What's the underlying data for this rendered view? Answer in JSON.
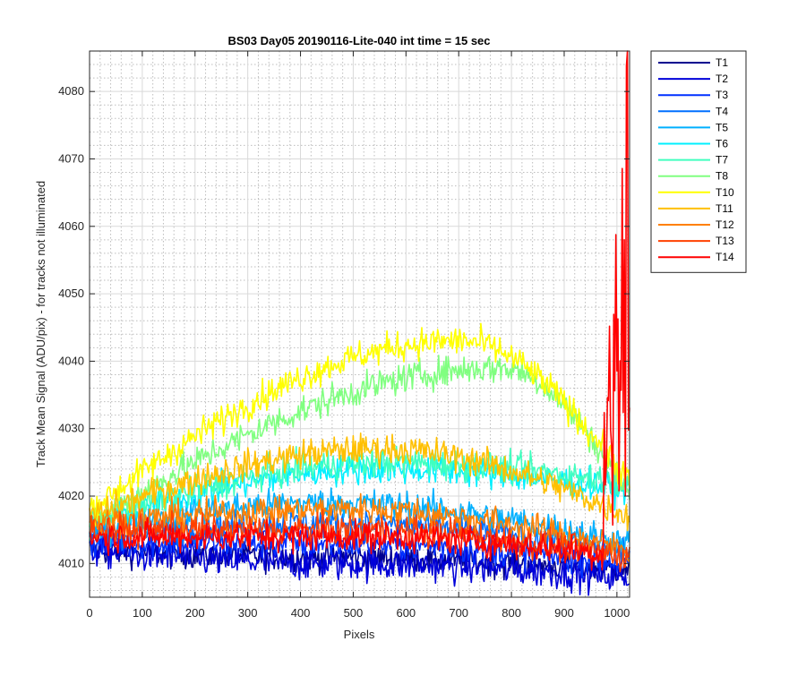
{
  "chart_data": {
    "type": "line",
    "title": "BS03 Day05 20190116-Lite-040 int time = 15 sec",
    "xlabel": "Pixels",
    "ylabel": "Track Mean Signal (ADU/pix) - for tracks not illuminated",
    "xlim": [
      0,
      1024
    ],
    "ylim": [
      4005,
      4086
    ],
    "xticks": [
      "0",
      "100",
      "200",
      "300",
      "400",
      "500",
      "600",
      "700",
      "800",
      "900",
      "1000"
    ],
    "yticks": [
      "4010",
      "4020",
      "4030",
      "4040",
      "4050",
      "4060",
      "4070",
      "4080"
    ],
    "grid": true,
    "minor_grid": true,
    "legend_position": "outside-top-right",
    "series_shape": "rises from the start level to a broad maximum near the peak pixel, then falls to the end level, with pixel-to-pixel noise of the given amplitude; T14 spikes sharply past pixel 980",
    "series": [
      {
        "name": "T1",
        "color": "#00008F",
        "start": 4012,
        "peak": 4011,
        "peak_x": 400,
        "end": 4009,
        "noise": 1.5
      },
      {
        "name": "T2",
        "color": "#0000D9",
        "start": 4012,
        "peak": 4010,
        "peak_x": 450,
        "end": 4008,
        "noise": 1.8
      },
      {
        "name": "T3",
        "color": "#0030FF",
        "start": 4013,
        "peak": 4013,
        "peak_x": 450,
        "end": 4010,
        "noise": 1.6
      },
      {
        "name": "T4",
        "color": "#0070FF",
        "start": 4014,
        "peak": 4016,
        "peak_x": 450,
        "end": 4012,
        "noise": 1.6
      },
      {
        "name": "T5",
        "color": "#00B0FF",
        "start": 4015,
        "peak": 4019,
        "peak_x": 450,
        "end": 4013,
        "noise": 1.6
      },
      {
        "name": "T6",
        "color": "#00F0FF",
        "start": 4016,
        "peak": 4024,
        "peak_x": 550,
        "end": 4021,
        "noise": 1.6
      },
      {
        "name": "T7",
        "color": "#40FFBF",
        "start": 4016,
        "peak": 4025,
        "peak_x": 560,
        "end": 4022,
        "noise": 1.6
      },
      {
        "name": "T8",
        "color": "#80FF80",
        "start": 4016,
        "peak": 4039,
        "peak_x": 780,
        "end": 4020,
        "noise": 1.6
      },
      {
        "name": "T10",
        "color": "#FFFF00",
        "start": 4018,
        "peak": 4043,
        "peak_x": 700,
        "end": 4022,
        "noise": 1.6
      },
      {
        "name": "T11",
        "color": "#FFC000",
        "start": 4017,
        "peak": 4027,
        "peak_x": 550,
        "end": 4017,
        "noise": 1.6
      },
      {
        "name": "T12",
        "color": "#FF8000",
        "start": 4016,
        "peak": 4018,
        "peak_x": 500,
        "end": 4012,
        "noise": 1.6
      },
      {
        "name": "T13",
        "color": "#FF4000",
        "start": 4015,
        "peak": 4015,
        "peak_x": 500,
        "end": 4011,
        "noise": 1.6
      },
      {
        "name": "T14",
        "color": "#FF0000",
        "start": 4014,
        "peak": 4014,
        "peak_x": 500,
        "end": 4011,
        "noise": 1.6
      }
    ]
  }
}
